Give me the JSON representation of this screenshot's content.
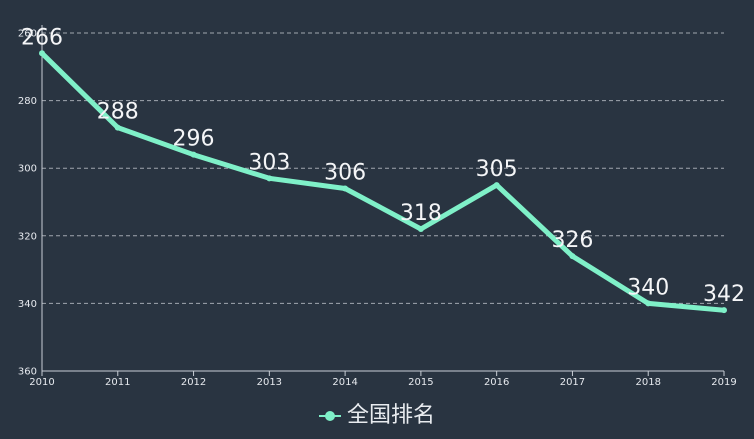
{
  "chart_data": {
    "type": "line",
    "title": "",
    "xlabel": "",
    "ylabel": "",
    "categories": [
      "2010",
      "2011",
      "2012",
      "2013",
      "2014",
      "2015",
      "2016",
      "2017",
      "2018",
      "2019"
    ],
    "series": [
      {
        "name": "全国排名",
        "values": [
          266,
          288,
          296,
          303,
          306,
          318,
          305,
          326,
          340,
          342
        ]
      }
    ],
    "yaxis": {
      "inverse": true,
      "min": 260,
      "max": 360,
      "ticks": [
        "260",
        "280",
        "300",
        "320",
        "340",
        "360"
      ]
    },
    "grid": true,
    "legend": "bottom-center",
    "colors": {
      "background": "#293441",
      "series": "#7ff0c8",
      "grid": "#c9ced6",
      "text": "#e6e9ee"
    }
  }
}
